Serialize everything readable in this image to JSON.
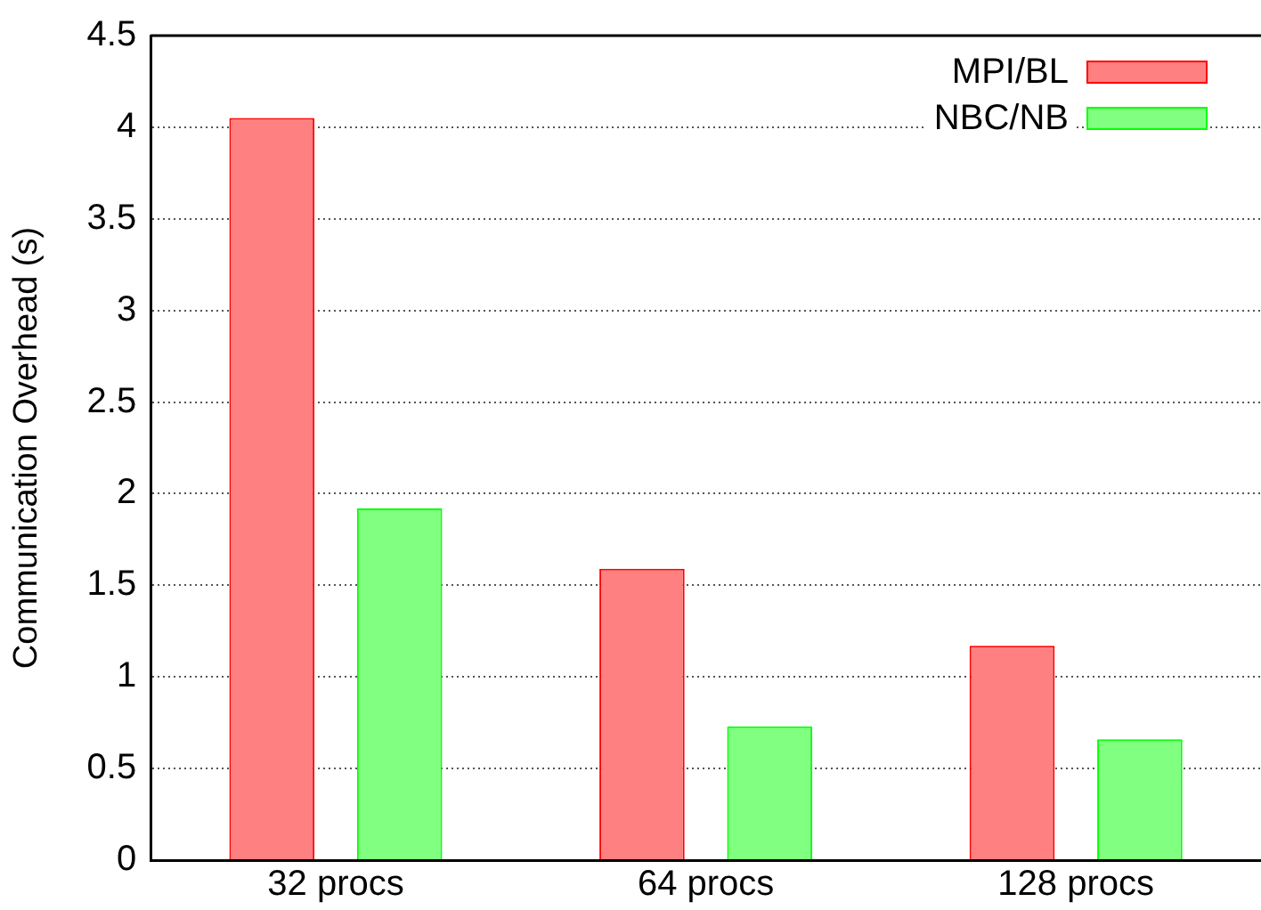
{
  "chart_data": {
    "type": "bar",
    "ylabel": "Communication Overhead (s)",
    "categories": [
      "32 procs",
      "64 procs",
      "128 procs"
    ],
    "series": [
      {
        "name": "MPI/BL",
        "color": "#ff8080",
        "values": [
          4.05,
          1.59,
          1.17
        ]
      },
      {
        "name": "NBC/NB",
        "color": "#80ff80",
        "values": [
          1.92,
          0.73,
          0.66
        ]
      }
    ],
    "ylim": [
      0,
      4.5
    ],
    "yticks": [
      0,
      0.5,
      1,
      1.5,
      2,
      2.5,
      3,
      3.5,
      4,
      4.5
    ],
    "grid": "y",
    "legend": "top right"
  }
}
